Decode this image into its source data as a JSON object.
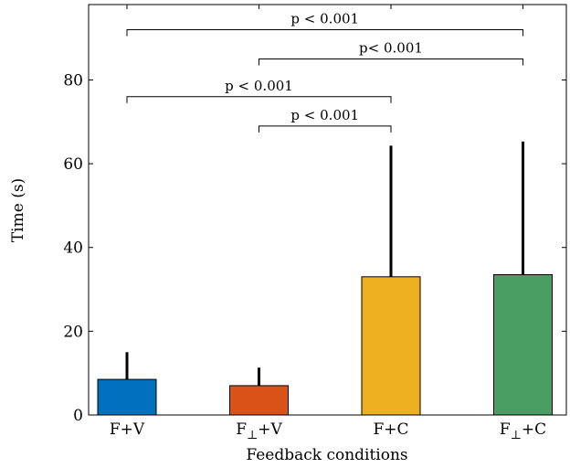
{
  "chart_data": {
    "type": "bar",
    "xlabel": "Feedback conditions",
    "ylabel": "Time (s)",
    "ylim": [
      0,
      98
    ],
    "yticks": [
      0,
      20,
      40,
      60,
      80
    ],
    "categories": [
      {
        "base": "F",
        "sub": "",
        "suffix": "+V"
      },
      {
        "base": "F",
        "sub": "⊥",
        "suffix": "+V"
      },
      {
        "base": "F",
        "sub": "",
        "suffix": "+C"
      },
      {
        "base": "F",
        "sub": "⊥",
        "suffix": "+C"
      }
    ],
    "values": [
      8.5,
      7.0,
      33.0,
      33.5
    ],
    "error_upper": [
      15.0,
      11.3,
      64.3,
      65.3
    ],
    "colors": [
      "#0072BD",
      "#D95319",
      "#EDB120",
      "#4A9E64"
    ],
    "grid": false,
    "significance": [
      {
        "from": 0,
        "to": 2,
        "label": "p < 0.001",
        "y": 76
      },
      {
        "from": 1,
        "to": 2,
        "label": "p < 0.001",
        "y": 69
      },
      {
        "from": 0,
        "to": 3,
        "label": "p < 0.001",
        "y": 92
      },
      {
        "from": 1,
        "to": 3,
        "label": "p< 0.001",
        "y": 85
      }
    ]
  }
}
